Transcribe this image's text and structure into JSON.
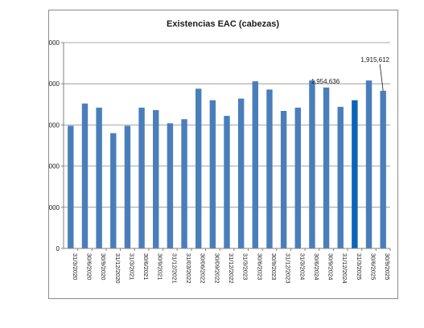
{
  "chart_data": {
    "type": "bar",
    "title": "Existencias EAC (cabezas)",
    "xlabel": "",
    "ylabel": "",
    "ylim": [
      0,
      2500000
    ],
    "yticks": [
      0,
      500000,
      1000000,
      1500000,
      2000000,
      2500000
    ],
    "ytick_labels": [
      "0",
      "500,000",
      "1,000,000",
      "1,500,000",
      "2,000,000",
      "2,500,000"
    ],
    "grid": "horizontal",
    "legend": "none",
    "categories": [
      "31/3/2020",
      "30/6/2020",
      "30/9/2020",
      "31/12/2020",
      "31/3/2021",
      "30/6/2021",
      "30/9/2021",
      "31/12/2021",
      "31/03/2022",
      "30/06/2022",
      "30/09/2022",
      "31/12/2022",
      "31/3/2023",
      "30/6/2023",
      "30/9/2023",
      "31/12/2023",
      "31/3/2024",
      "30/6/2024",
      "30/9/2024",
      "31/12/2024",
      "31/3/2025",
      "30/6/2025",
      "30/9/2025"
    ],
    "values": [
      1490000,
      1760000,
      1710000,
      1400000,
      1490000,
      1710000,
      1680000,
      1520000,
      1570000,
      1940000,
      1800000,
      1610000,
      1820000,
      2030000,
      1930000,
      1670000,
      1710000,
      2040000,
      1954636,
      1720000,
      1800000,
      2040000,
      1915612
    ],
    "bar_color": "#4a7ebb",
    "highlight_color": "#0b64b8",
    "highlight_index": 20,
    "data_labels": [
      {
        "index": 18,
        "text": "1,954,636"
      },
      {
        "index": 22,
        "text": "1,915,612"
      }
    ]
  }
}
